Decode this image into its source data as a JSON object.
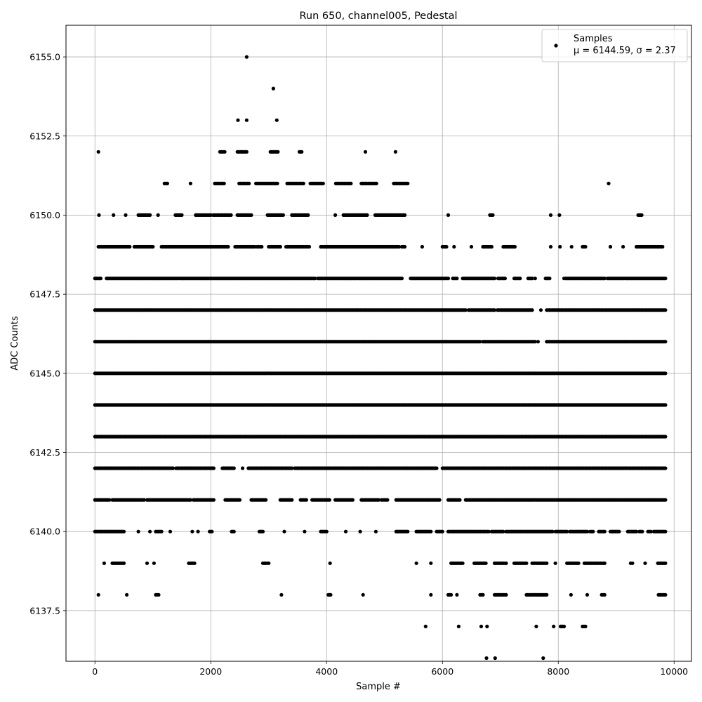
{
  "chart_data": {
    "type": "scatter",
    "title": "Run 650, channel005, Pedestal",
    "xlabel": "Sample #",
    "ylabel": "ADC Counts",
    "xlim": [
      -500,
      10300
    ],
    "ylim": [
      6135.9,
      6156.0
    ],
    "x_ticks": [
      0,
      2000,
      4000,
      6000,
      8000,
      10000
    ],
    "x_tick_labels": [
      "0",
      "2000",
      "4000",
      "6000",
      "8000",
      "10000"
    ],
    "y_ticks": [
      6137.5,
      6140.0,
      6142.5,
      6145.0,
      6147.5,
      6150.0,
      6152.5,
      6155.0
    ],
    "y_tick_labels": [
      "6137.5",
      "6140.0",
      "6142.5",
      "6145.0",
      "6147.5",
      "6150.0",
      "6152.5",
      "6155.0"
    ],
    "grid": true,
    "legend": {
      "placement": "top-right",
      "entries": [
        {
          "marker": "dot",
          "label": "Samples",
          "label2": "μ = 6144.59, σ = 2.37"
        }
      ]
    },
    "marker_color": "#000000",
    "series": [
      {
        "name": "Samples",
        "level_ranges": [
          {
            "y": 6155,
            "x": [
              [
                2620,
                2620
              ]
            ]
          },
          {
            "y": 6154,
            "x": [
              [
                3080,
                3080
              ]
            ]
          },
          {
            "y": 6153,
            "x": [
              [
                2470,
                2470
              ],
              [
                2620,
                2620
              ],
              [
                3140,
                3140
              ]
            ]
          },
          {
            "y": 6152,
            "x": [
              [
                60,
                60
              ],
              [
                2160,
                2240
              ],
              [
                2460,
                2620
              ],
              [
                3030,
                3160
              ],
              [
                3530,
                3570
              ],
              [
                4670,
                4670
              ],
              [
                5190,
                5190
              ]
            ]
          },
          {
            "y": 6151,
            "x": [
              [
                1200,
                1250
              ],
              [
                1650,
                1650
              ],
              [
                2070,
                2230
              ],
              [
                2490,
                2660
              ],
              [
                2780,
                3150
              ],
              [
                3320,
                3600
              ],
              [
                3720,
                3940
              ],
              [
                4160,
                4420
              ],
              [
                4600,
                4860
              ],
              [
                5160,
                5400
              ],
              [
                8870,
                8870
              ]
            ]
          },
          {
            "y": 6150,
            "x": [
              [
                70,
                70
              ],
              [
                320,
                320
              ],
              [
                530,
                530
              ],
              [
                750,
                950
              ],
              [
                1090,
                1090
              ],
              [
                1390,
                1500
              ],
              [
                1740,
                2000
              ],
              [
                2040,
                2350
              ],
              [
                2460,
                2700
              ],
              [
                2980,
                3250
              ],
              [
                3400,
                3680
              ],
              [
                4150,
                4150
              ],
              [
                4290,
                4700
              ],
              [
                4840,
                5350
              ],
              [
                6100,
                6100
              ],
              [
                6820,
                6870
              ],
              [
                7870,
                7870
              ],
              [
                8020,
                8020
              ],
              [
                9380,
                9440
              ]
            ]
          },
          {
            "y": 6149,
            "x": [
              [
                60,
                600
              ],
              [
                680,
                1000
              ],
              [
                1150,
                2300
              ],
              [
                2420,
                2760
              ],
              [
                2800,
                2880
              ],
              [
                3000,
                3200
              ],
              [
                3300,
                3700
              ],
              [
                3900,
                5250
              ],
              [
                5300,
                5350
              ],
              [
                5650,
                5650
              ],
              [
                6000,
                6070
              ],
              [
                6200,
                6200
              ],
              [
                6500,
                6500
              ],
              [
                6700,
                6850
              ],
              [
                7050,
                7250
              ],
              [
                7870,
                7870
              ],
              [
                8030,
                8030
              ],
              [
                8230,
                8230
              ],
              [
                8420,
                8470
              ],
              [
                8900,
                8900
              ],
              [
                9120,
                9120
              ],
              [
                9350,
                9800
              ]
            ]
          },
          {
            "y": 6148,
            "x": [
              [
                0,
                100
              ],
              [
                200,
                3800
              ],
              [
                3850,
                5300
              ],
              [
                5450,
                6100
              ],
              [
                6180,
                6250
              ],
              [
                6350,
                6900
              ],
              [
                6960,
                7080
              ],
              [
                7240,
                7340
              ],
              [
                7480,
                7550
              ],
              [
                7600,
                7600
              ],
              [
                7780,
                7850
              ],
              [
                8100,
                8100
              ],
              [
                8130,
                8800
              ],
              [
                8850,
                9850
              ]
            ]
          },
          {
            "y": 6147,
            "x": [
              [
                0,
                6400
              ],
              [
                6450,
                6900
              ],
              [
                6950,
                7550
              ],
              [
                7700,
                7700
              ],
              [
                7800,
                9850
              ]
            ]
          },
          {
            "y": 6146,
            "x": [
              [
                0,
                6650
              ],
              [
                6700,
                7600
              ],
              [
                7650,
                7650
              ],
              [
                7800,
                9850
              ]
            ]
          },
          {
            "y": 6145,
            "x": [
              [
                0,
                9850
              ]
            ]
          },
          {
            "y": 6144,
            "x": [
              [
                0,
                9850
              ]
            ]
          },
          {
            "y": 6143,
            "x": [
              [
                0,
                9850
              ]
            ]
          },
          {
            "y": 6142,
            "x": [
              [
                0,
                1350
              ],
              [
                1400,
                2050
              ],
              [
                2200,
                2400
              ],
              [
                2550,
                2550
              ],
              [
                2650,
                3400
              ],
              [
                3450,
                5900
              ],
              [
                6000,
                9850
              ]
            ]
          },
          {
            "y": 6141,
            "x": [
              [
                0,
                250
              ],
              [
                300,
                850
              ],
              [
                900,
                1650
              ],
              [
                1700,
                2050
              ],
              [
                2250,
                2500
              ],
              [
                2700,
                2950
              ],
              [
                3200,
                3400
              ],
              [
                3550,
                3650
              ],
              [
                3750,
                4050
              ],
              [
                4150,
                4450
              ],
              [
                4600,
                4900
              ],
              [
                4950,
                5050
              ],
              [
                5200,
                5950
              ],
              [
                6100,
                6300
              ],
              [
                6400,
                9850
              ]
            ]
          },
          {
            "y": 6140,
            "x": [
              [
                0,
                500
              ],
              [
                750,
                750
              ],
              [
                950,
                950
              ],
              [
                1050,
                1150
              ],
              [
                1300,
                1300
              ],
              [
                1680,
                1680
              ],
              [
                1780,
                1780
              ],
              [
                1980,
                2020
              ],
              [
                2360,
                2400
              ],
              [
                2840,
                2900
              ],
              [
                3270,
                3270
              ],
              [
                3620,
                3620
              ],
              [
                3900,
                4000
              ],
              [
                4330,
                4330
              ],
              [
                4580,
                4580
              ],
              [
                4850,
                4850
              ],
              [
                5200,
                5400
              ],
              [
                5550,
                5800
              ],
              [
                5900,
                6000
              ],
              [
                6100,
                6800
              ],
              [
                6850,
                7050
              ],
              [
                7100,
                7900
              ],
              [
                7950,
                8150
              ],
              [
                8200,
                8500
              ],
              [
                8550,
                8600
              ],
              [
                8700,
                8800
              ],
              [
                8900,
                9050
              ],
              [
                9200,
                9350
              ],
              [
                9400,
                9450
              ],
              [
                9550,
                9600
              ],
              [
                9650,
                9850
              ]
            ]
          },
          {
            "y": 6139,
            "x": [
              [
                160,
                160
              ],
              [
                300,
                500
              ],
              [
                900,
                900
              ],
              [
                1020,
                1020
              ],
              [
                1620,
                1720
              ],
              [
                2900,
                3000
              ],
              [
                4060,
                4060
              ],
              [
                5550,
                5550
              ],
              [
                5800,
                5800
              ],
              [
                6150,
                6350
              ],
              [
                6550,
                6750
              ],
              [
                6900,
                7100
              ],
              [
                7240,
                7450
              ],
              [
                7550,
                7800
              ],
              [
                7950,
                7950
              ],
              [
                8150,
                8350
              ],
              [
                8450,
                8800
              ],
              [
                9250,
                9280
              ],
              [
                9500,
                9500
              ],
              [
                9720,
                9850
              ]
            ]
          },
          {
            "y": 6138,
            "x": [
              [
                60,
                60
              ],
              [
                550,
                550
              ],
              [
                1050,
                1100
              ],
              [
                3220,
                3220
              ],
              [
                4030,
                4070
              ],
              [
                4630,
                4630
              ],
              [
                5800,
                5800
              ],
              [
                6100,
                6150
              ],
              [
                6250,
                6250
              ],
              [
                6650,
                6700
              ],
              [
                6900,
                7100
              ],
              [
                7450,
                7800
              ],
              [
                8220,
                8220
              ],
              [
                8500,
                8500
              ],
              [
                8750,
                8800
              ],
              [
                9730,
                9850
              ]
            ]
          },
          {
            "y": 6137,
            "x": [
              [
                5710,
                5710
              ],
              [
                6280,
                6280
              ],
              [
                6670,
                6670
              ],
              [
                6770,
                6770
              ],
              [
                7620,
                7620
              ],
              [
                7920,
                7920
              ],
              [
                8040,
                8100
              ],
              [
                8420,
                8470
              ]
            ]
          },
          {
            "y": 6136,
            "x": [
              [
                6760,
                6760
              ],
              [
                6910,
                6910
              ],
              [
                7740,
                7750
              ]
            ]
          }
        ]
      }
    ]
  }
}
